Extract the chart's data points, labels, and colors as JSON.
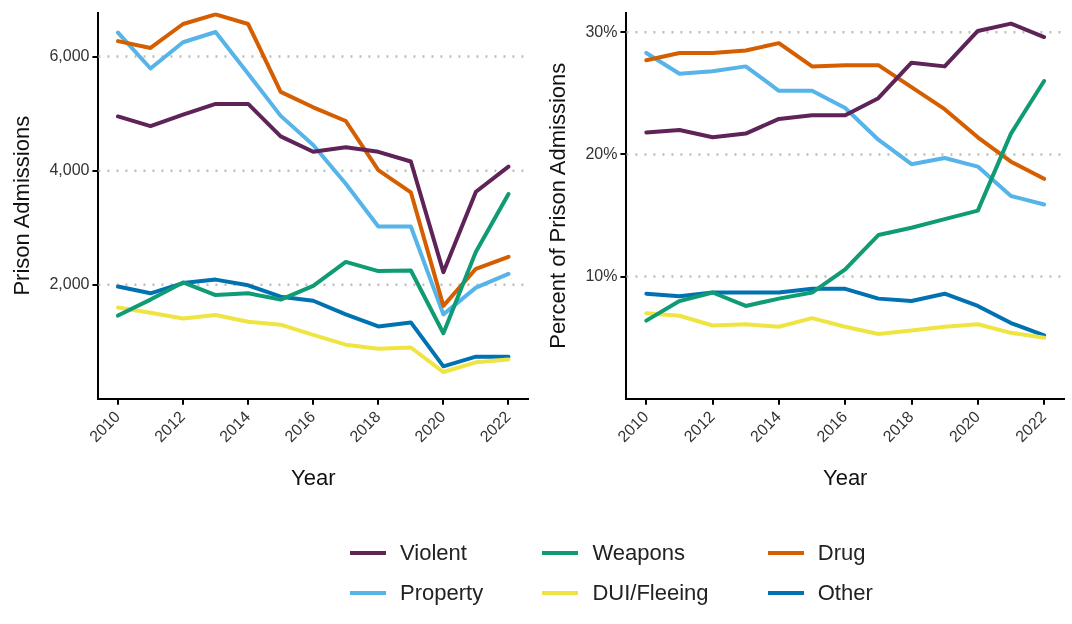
{
  "chart_data": [
    {
      "type": "line",
      "xlabel": "Year",
      "ylabel": "Prison Admissions",
      "x": [
        2010,
        2011,
        2012,
        2013,
        2014,
        2015,
        2016,
        2017,
        2018,
        2019,
        2020,
        2021,
        2022
      ],
      "xlim": [
        2009.4,
        2022.6
      ],
      "xticks": [
        2010,
        2012,
        2014,
        2016,
        2018,
        2020,
        2022
      ],
      "ylim": [
        0,
        6770
      ],
      "yticks": [
        {
          "value": 2000,
          "label": "2,000"
        },
        {
          "value": 4000,
          "label": "4,000"
        },
        {
          "value": 6000,
          "label": "6,000"
        }
      ],
      "grid": "y",
      "legend": "bottom",
      "series": [
        {
          "name": "Violent",
          "color": "#5e2357",
          "values": [
            4950,
            4780,
            4980,
            5170,
            5170,
            4600,
            4330,
            4410,
            4330,
            4160,
            2220,
            3630,
            4070
          ]
        },
        {
          "name": "Weapons",
          "color": "#0f9b73",
          "values": [
            1460,
            1740,
            2040,
            1820,
            1850,
            1740,
            1980,
            2400,
            2240,
            2250,
            1150,
            2580,
            3590
          ]
        },
        {
          "name": "Drug",
          "color": "#d55e00",
          "values": [
            6270,
            6150,
            6570,
            6740,
            6570,
            5380,
            5110,
            4870,
            4010,
            3620,
            1630,
            2280,
            2490
          ]
        },
        {
          "name": "Property",
          "color": "#56b4e9",
          "values": [
            6420,
            5790,
            6250,
            6430,
            5700,
            4960,
            4450,
            3770,
            3020,
            3020,
            1480,
            1950,
            2190
          ]
        },
        {
          "name": "DUI/Fleeing",
          "color": "#f0e442",
          "values": [
            1600,
            1510,
            1410,
            1470,
            1350,
            1300,
            1120,
            950,
            880,
            900,
            470,
            640,
            690
          ]
        },
        {
          "name": "Other",
          "color": "#0072b2",
          "values": [
            1970,
            1850,
            2030,
            2090,
            1990,
            1790,
            1720,
            1480,
            1270,
            1340,
            570,
            740,
            740
          ]
        }
      ]
    },
    {
      "type": "line",
      "xlabel": "Year",
      "ylabel": "Percent of Prison Admissions",
      "x": [
        2010,
        2011,
        2012,
        2013,
        2014,
        2015,
        2016,
        2017,
        2018,
        2019,
        2020,
        2021,
        2022
      ],
      "xlim": [
        2009.4,
        2022.6
      ],
      "xticks": [
        2010,
        2012,
        2014,
        2016,
        2018,
        2020,
        2022
      ],
      "ylim": [
        0,
        31.6
      ],
      "yticks": [
        {
          "value": 10,
          "label": "10%"
        },
        {
          "value": 20,
          "label": "20%"
        },
        {
          "value": 30,
          "label": "30%"
        }
      ],
      "grid": "y",
      "series": [
        {
          "color": "#5e2357",
          "values": [
            21.8,
            22.0,
            21.4,
            21.7,
            22.9,
            23.2,
            23.2,
            24.6,
            27.5,
            27.2,
            30.1,
            30.7,
            29.6
          ]
        },
        {
          "color": "#0f9b73",
          "values": [
            6.4,
            8.0,
            8.7,
            7.6,
            8.2,
            8.7,
            10.6,
            13.4,
            14.0,
            14.7,
            15.4,
            21.7,
            26.0
          ]
        },
        {
          "color": "#d55e00",
          "values": [
            27.7,
            28.3,
            28.3,
            28.5,
            29.1,
            27.2,
            27.3,
            27.3,
            25.5,
            23.7,
            21.4,
            19.4,
            18.0
          ]
        },
        {
          "color": "#56b4e9",
          "values": [
            28.3,
            26.6,
            26.8,
            27.2,
            25.2,
            25.2,
            23.8,
            21.2,
            19.2,
            19.7,
            19.0,
            16.6,
            15.9
          ]
        },
        {
          "color": "#f0e442",
          "values": [
            7.0,
            6.8,
            6.0,
            6.1,
            5.9,
            6.6,
            5.9,
            5.3,
            5.6,
            5.9,
            6.1,
            5.4,
            5.0
          ]
        },
        {
          "color": "#0072b2",
          "values": [
            8.6,
            8.4,
            8.7,
            8.7,
            8.7,
            9.0,
            9.0,
            8.2,
            8.0,
            8.6,
            7.6,
            6.2,
            5.2
          ]
        }
      ]
    }
  ]
}
